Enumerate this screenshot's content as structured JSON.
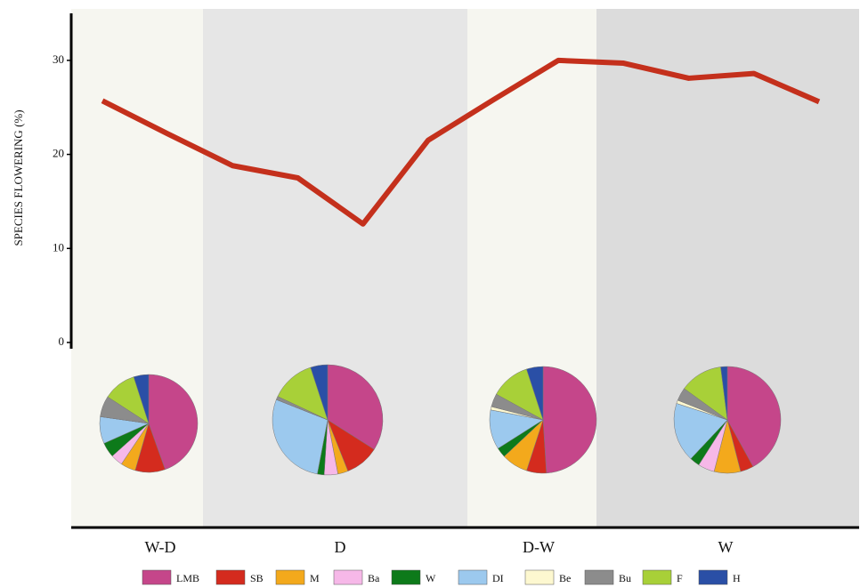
{
  "chart_data": {
    "type": "line",
    "ylabel": "SPECIES FLOWERING (%)",
    "categories": [
      null,
      null,
      null,
      null,
      null,
      null,
      null,
      null,
      null,
      null,
      null,
      null
    ],
    "series": [
      {
        "color": "#c4301c",
        "values": [
          25.7,
          22.2,
          18.8,
          17.5,
          12.6,
          21.5,
          25.8,
          30.0,
          29.7,
          28.1,
          28.6,
          25.6
        ]
      }
    ],
    "ylim": [
      0,
      35
    ],
    "yticks": [
      0,
      10,
      20,
      30
    ],
    "seasons": [
      {
        "label": "W-D",
        "color": "#f6f6f0"
      },
      {
        "label": "D",
        "color": "#e6e6e6"
      },
      {
        "label": "D-W",
        "color": "#f6f6f0"
      },
      {
        "label": "W",
        "color": "#dcdcdc"
      }
    ],
    "pie_groups": [
      {
        "name": "LMB",
        "color": "#c5468a"
      },
      {
        "name": "SB",
        "color": "#d42b1e"
      },
      {
        "name": "M",
        "color": "#f3a91c"
      },
      {
        "name": "Ba",
        "color": "#f6b8e8"
      },
      {
        "name": "W",
        "color": "#0d7a1a"
      },
      {
        "name": "DI",
        "color": "#9cc9ee"
      },
      {
        "name": "Be",
        "color": "#fdf8d0"
      },
      {
        "name": "Bu",
        "color": "#8c8c8c"
      },
      {
        "name": "F",
        "color": "#a8d038"
      },
      {
        "name": "H",
        "color": "#2a4fa6"
      }
    ],
    "pies": [
      {
        "values": [
          45,
          10,
          5,
          4,
          5,
          9,
          0,
          7,
          11,
          5
        ]
      },
      {
        "values": [
          34,
          10,
          3,
          4,
          2,
          28,
          0,
          1,
          13,
          5
        ]
      },
      {
        "values": [
          49,
          6,
          8,
          0,
          3,
          12,
          1,
          4,
          12,
          5
        ]
      },
      {
        "values": [
          42,
          4,
          8,
          5,
          3,
          18,
          1,
          4,
          13,
          2
        ]
      }
    ]
  }
}
